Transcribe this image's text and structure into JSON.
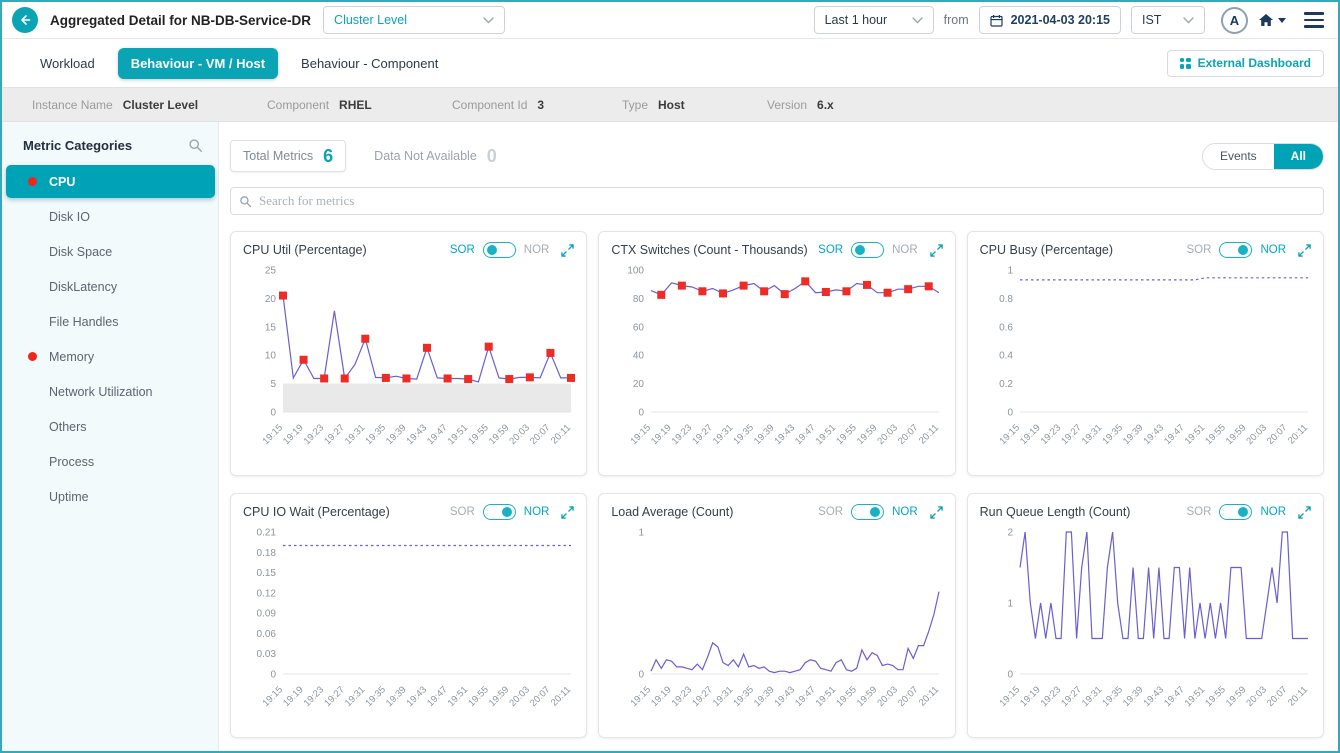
{
  "header": {
    "title": "Aggregated Detail for NB-DB-Service-DR",
    "scope_dropdown": "Cluster Level",
    "time_range_dropdown": "Last 1 hour",
    "from_label": "from",
    "datetime": "2021-04-03 20:15",
    "timezone_dropdown": "IST",
    "avatar_letter": "A"
  },
  "tabs": {
    "items": [
      {
        "label": "Workload",
        "active": false
      },
      {
        "label": "Behaviour - VM / Host",
        "active": true
      },
      {
        "label": "Behaviour - Component",
        "active": false
      }
    ],
    "external_dashboard_label": "External Dashboard"
  },
  "info_bar": {
    "fields": [
      {
        "label": "Instance Name",
        "value": "Cluster Level"
      },
      {
        "label": "Component",
        "value": "RHEL"
      },
      {
        "label": "Component Id",
        "value": "3"
      },
      {
        "label": "Type",
        "value": "Host"
      },
      {
        "label": "Version",
        "value": "6.x"
      }
    ]
  },
  "sidebar": {
    "title": "Metric Categories",
    "items": [
      {
        "label": "CPU",
        "active": true,
        "alert": true
      },
      {
        "label": "Disk IO",
        "active": false,
        "alert": false
      },
      {
        "label": "Disk Space",
        "active": false,
        "alert": false
      },
      {
        "label": "DiskLatency",
        "active": false,
        "alert": false
      },
      {
        "label": "File Handles",
        "active": false,
        "alert": false
      },
      {
        "label": "Memory",
        "active": false,
        "alert": true
      },
      {
        "label": "Network Utilization",
        "active": false,
        "alert": false
      },
      {
        "label": "Others",
        "active": false,
        "alert": false
      },
      {
        "label": "Process",
        "active": false,
        "alert": false
      },
      {
        "label": "Uptime",
        "active": false,
        "alert": false
      }
    ]
  },
  "toolbar": {
    "total_metrics_label": "Total Metrics",
    "total_metrics_value": "6",
    "dna_label": "Data Not Available",
    "dna_value": "0",
    "events_label": "Events",
    "all_label": "All",
    "search_placeholder": "Search for metrics"
  },
  "chart_controls": {
    "sor": "SOR",
    "nor": "NOR"
  },
  "colors": {
    "accent": "#0aa4b5",
    "line": "#6a5ed1",
    "marker": "#ee2b24",
    "alert_dot": "#f0261d",
    "band": "#e9e9e9",
    "axis_text": "#8b959e"
  },
  "chart_data": [
    {
      "type": "line",
      "title": "CPU Util (Percentage)",
      "toggle": "SOR",
      "ylim": [
        0,
        25
      ],
      "yticks": [
        0,
        5,
        10,
        15,
        20,
        25
      ],
      "band": [
        0,
        5
      ],
      "dashed": false,
      "x_labels": [
        "19:15",
        "19:19",
        "19:23",
        "19:27",
        "19:31",
        "19:35",
        "19:39",
        "19:43",
        "19:47",
        "19:51",
        "19:55",
        "19:59",
        "20:03",
        "20:07",
        "20:11"
      ],
      "values": [
        20.5,
        6,
        9.2,
        5.9,
        5.9,
        17.8,
        5.9,
        8.4,
        12.9,
        6.1,
        6,
        6.3,
        5.9,
        5.8,
        11.3,
        6,
        5.9,
        5.9,
        5.8,
        5.3,
        11.5,
        6,
        5.8,
        6.1,
        6.1,
        6,
        10.4,
        6,
        6
      ],
      "marker_indices": [
        0,
        2,
        4,
        6,
        8,
        10,
        12,
        14,
        16,
        18,
        20,
        22,
        24,
        26,
        28
      ]
    },
    {
      "type": "line",
      "title": "CTX Switches (Count - Thousands)",
      "toggle": "SOR",
      "ylim": [
        0,
        100
      ],
      "yticks": [
        0,
        20,
        40,
        60,
        80,
        100
      ],
      "band": null,
      "dashed": false,
      "x_labels": [
        "19:15",
        "19:19",
        "19:23",
        "19:27",
        "19:31",
        "19:35",
        "19:39",
        "19:43",
        "19:47",
        "19:51",
        "19:55",
        "19:59",
        "20:03",
        "20:07",
        "20:11"
      ],
      "values": [
        85.5,
        82.5,
        91,
        89,
        88,
        85,
        87,
        83.5,
        86,
        89,
        90.5,
        85,
        89,
        83,
        87,
        92,
        84,
        84.5,
        86,
        85,
        90.5,
        89.5,
        84,
        84,
        86.5,
        86.5,
        88.5,
        88.5,
        84
      ],
      "marker_indices": [
        1,
        3,
        5,
        7,
        9,
        11,
        13,
        15,
        17,
        19,
        21,
        23,
        25,
        27
      ]
    },
    {
      "type": "line",
      "title": "CPU Busy (Percentage)",
      "toggle": "NOR",
      "ylim": [
        0,
        1
      ],
      "yticks": [
        0,
        0.2,
        0.4,
        0.6,
        0.8,
        1
      ],
      "band": null,
      "dashed": true,
      "x_labels": [
        "19:15",
        "19:19",
        "19:23",
        "19:27",
        "19:31",
        "19:35",
        "19:39",
        "19:43",
        "19:47",
        "19:51",
        "19:55",
        "19:59",
        "20:03",
        "20:07",
        "20:11"
      ],
      "values": [
        0.93,
        0.93,
        0.93,
        0.93,
        0.93,
        0.93,
        0.93,
        0.93,
        0.93,
        0.93,
        0.93,
        0.93,
        0.93,
        0.93,
        0.93,
        0.93,
        0.93,
        0.93,
        0.945,
        0.945,
        0.945,
        0.945,
        0.945,
        0.945,
        0.945,
        0.945,
        0.945,
        0.945,
        0.945
      ],
      "marker_indices": []
    },
    {
      "type": "line",
      "title": "CPU IO Wait (Percentage)",
      "toggle": "NOR",
      "ylim": [
        0,
        0.21
      ],
      "yticks": [
        0,
        0.03,
        0.06,
        0.09,
        0.12,
        0.15,
        0.18,
        0.21
      ],
      "band": null,
      "dashed": true,
      "x_labels": [
        "19:15",
        "19:19",
        "19:23",
        "19:27",
        "19:31",
        "19:35",
        "19:39",
        "19:43",
        "19:47",
        "19:51",
        "19:55",
        "19:59",
        "20:03",
        "20:07",
        "20:11"
      ],
      "values": [
        0.19,
        0.19,
        0.19,
        0.19,
        0.19,
        0.19,
        0.19,
        0.19,
        0.19,
        0.19,
        0.19,
        0.19,
        0.19,
        0.19,
        0.19,
        0.19,
        0.19,
        0.19,
        0.19,
        0.19,
        0.19,
        0.19,
        0.19,
        0.19,
        0.19,
        0.19,
        0.19,
        0.19,
        0.19
      ],
      "marker_indices": []
    },
    {
      "type": "line",
      "title": "Load Average (Count)",
      "toggle": "NOR",
      "ylim": [
        0,
        1
      ],
      "yticks": [
        0,
        1
      ],
      "band": null,
      "dashed": false,
      "x_labels": [
        "19:15",
        "19:19",
        "19:23",
        "19:27",
        "19:31",
        "19:35",
        "19:39",
        "19:43",
        "19:47",
        "19:51",
        "19:55",
        "19:59",
        "20:03",
        "20:07",
        "20:11"
      ],
      "values": [
        0.02,
        0.1,
        0.04,
        0.1,
        0.09,
        0.05,
        0.05,
        0.04,
        0.03,
        0.07,
        0.03,
        0.12,
        0.22,
        0.19,
        0.08,
        0.06,
        0.1,
        0.05,
        0.14,
        0.05,
        0.06,
        0.04,
        0.05,
        0.02,
        0.01,
        0.02,
        0.02,
        0.01,
        0.02,
        0.03,
        0.08,
        0.1,
        0.09,
        0.04,
        0.03,
        0.02,
        0.08,
        0.1,
        0.03,
        0.02,
        0.04,
        0.17,
        0.1,
        0.15,
        0.13,
        0.06,
        0.07,
        0.06,
        0.03,
        0.03,
        0.18,
        0.11,
        0.2,
        0.2,
        0.3,
        0.42,
        0.58
      ],
      "marker_indices": []
    },
    {
      "type": "line",
      "title": "Run Queue Length (Count)",
      "toggle": "NOR",
      "ylim": [
        0,
        2
      ],
      "yticks": [
        0,
        1,
        2
      ],
      "band": null,
      "dashed": false,
      "x_labels": [
        "19:15",
        "19:19",
        "19:23",
        "19:27",
        "19:31",
        "19:35",
        "19:39",
        "19:43",
        "19:47",
        "19:51",
        "19:55",
        "19:59",
        "20:03",
        "20:07",
        "20:11"
      ],
      "values": [
        1.5,
        2,
        1,
        0.5,
        1,
        0.5,
        1,
        0.5,
        0.5,
        2,
        2,
        0.5,
        1.5,
        2,
        0.5,
        0.5,
        0.5,
        1.5,
        2,
        1,
        0.5,
        0.5,
        1.5,
        0.5,
        0.5,
        1.5,
        0.5,
        1.5,
        0.5,
        0.5,
        1.5,
        1.5,
        0.5,
        1.5,
        0.5,
        1,
        0.5,
        1,
        0.5,
        1,
        0.5,
        1.5,
        1.5,
        1.5,
        0.5,
        0.5,
        0.5,
        0.5,
        1,
        1.5,
        1,
        2,
        2,
        0.5,
        0.5,
        0.5,
        0.5
      ],
      "marker_indices": []
    }
  ]
}
